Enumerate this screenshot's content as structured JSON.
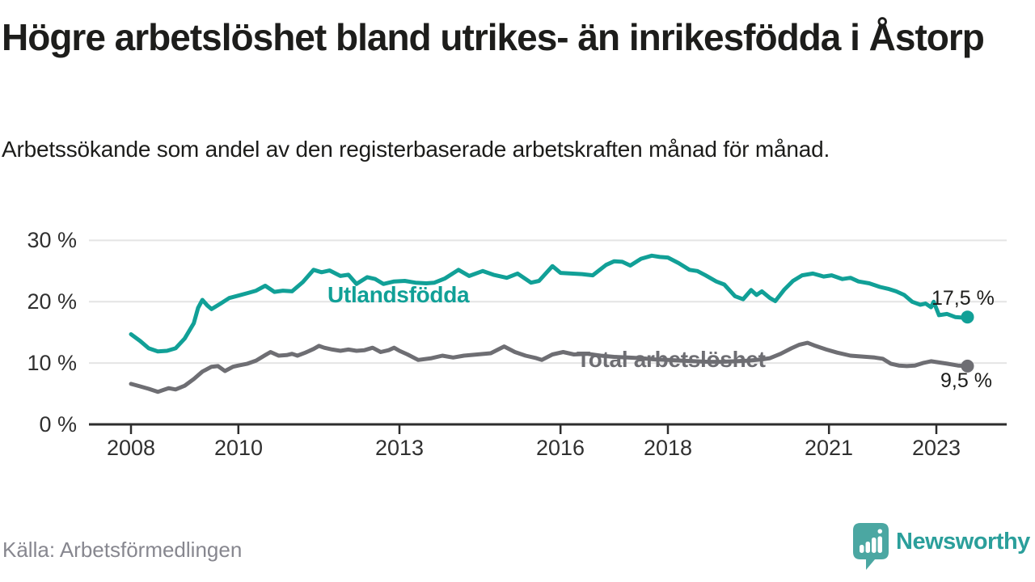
{
  "footer": {
    "source": "Källa: Arbetsförmedlingen",
    "brand_name": "Newsworthy",
    "brand_text_color": "#2b9f9b",
    "brand_icon": "speech-bubble-bar-chart",
    "brand_icon_color": "#4ba7a2"
  },
  "chart_data": {
    "type": "line",
    "title": "Högre arbetslöshet bland utrikes- än inrikesfödda i Åstorp",
    "subtitle": "Arbetssökande som andel av den registerbaserade arbetskraften månad för månad.",
    "x_unit": "year (monthly observations)",
    "y_unit": "percent of registered labour force",
    "xlim": [
      2007.217,
      2024.31
    ],
    "ylim": [
      0,
      31.5
    ],
    "grid": "horizontal",
    "legend_position": "inline-labels",
    "colors": {
      "gridline": "#e4e4e4",
      "axis": "#2d2d2d",
      "tick_text": "#303030",
      "value_text": "#1d1d1b"
    },
    "x_ticks": [
      {
        "value": 2008,
        "label": "2008"
      },
      {
        "value": 2010,
        "label": "2010"
      },
      {
        "value": 2013,
        "label": "2013"
      },
      {
        "value": 2016,
        "label": "2016"
      },
      {
        "value": 2018,
        "label": "2018"
      },
      {
        "value": 2021,
        "label": "2021"
      },
      {
        "value": 2023,
        "label": "2023"
      }
    ],
    "y_ticks": [
      {
        "value": 0,
        "label": "0 %"
      },
      {
        "value": 10,
        "label": "10 %"
      },
      {
        "value": 20,
        "label": "20 %"
      },
      {
        "value": 30,
        "label": "30 %"
      }
    ],
    "series": [
      {
        "name": "Utlandsfödda",
        "color": "#11a097",
        "end_value": 17.5,
        "end_label": "17,5 %",
        "points": [
          [
            2008.0,
            14.7
          ],
          [
            2008.17,
            13.6
          ],
          [
            2008.33,
            12.4
          ],
          [
            2008.5,
            11.9
          ],
          [
            2008.67,
            12.0
          ],
          [
            2008.83,
            12.4
          ],
          [
            2009.0,
            14.0
          ],
          [
            2009.17,
            16.5
          ],
          [
            2009.25,
            19.0
          ],
          [
            2009.33,
            20.3
          ],
          [
            2009.42,
            19.4
          ],
          [
            2009.5,
            18.8
          ],
          [
            2009.67,
            19.7
          ],
          [
            2009.83,
            20.6
          ],
          [
            2010.0,
            21.0
          ],
          [
            2010.17,
            21.4
          ],
          [
            2010.33,
            21.8
          ],
          [
            2010.5,
            22.6
          ],
          [
            2010.67,
            21.6
          ],
          [
            2010.83,
            21.8
          ],
          [
            2011.0,
            21.7
          ],
          [
            2011.2,
            23.2
          ],
          [
            2011.4,
            25.2
          ],
          [
            2011.55,
            24.8
          ],
          [
            2011.7,
            25.1
          ],
          [
            2011.9,
            24.2
          ],
          [
            2012.05,
            24.4
          ],
          [
            2012.2,
            22.9
          ],
          [
            2012.4,
            24.0
          ],
          [
            2012.55,
            23.7
          ],
          [
            2012.7,
            22.9
          ],
          [
            2012.9,
            23.3
          ],
          [
            2013.1,
            23.4
          ],
          [
            2013.3,
            23.1
          ],
          [
            2013.5,
            23.0
          ],
          [
            2013.65,
            23.1
          ],
          [
            2013.85,
            23.8
          ],
          [
            2014.1,
            25.2
          ],
          [
            2014.3,
            24.2
          ],
          [
            2014.55,
            25.0
          ],
          [
            2014.75,
            24.4
          ],
          [
            2015.0,
            23.9
          ],
          [
            2015.2,
            24.6
          ],
          [
            2015.45,
            23.1
          ],
          [
            2015.6,
            23.4
          ],
          [
            2015.85,
            25.8
          ],
          [
            2016.0,
            24.7
          ],
          [
            2016.2,
            24.6
          ],
          [
            2016.4,
            24.5
          ],
          [
            2016.6,
            24.3
          ],
          [
            2016.85,
            26.0
          ],
          [
            2017.0,
            26.6
          ],
          [
            2017.15,
            26.5
          ],
          [
            2017.3,
            25.9
          ],
          [
            2017.5,
            27.0
          ],
          [
            2017.7,
            27.5
          ],
          [
            2017.85,
            27.3
          ],
          [
            2018.0,
            27.2
          ],
          [
            2018.2,
            26.3
          ],
          [
            2018.4,
            25.2
          ],
          [
            2018.55,
            25.0
          ],
          [
            2018.7,
            24.3
          ],
          [
            2018.9,
            23.3
          ],
          [
            2019.05,
            22.8
          ],
          [
            2019.25,
            20.9
          ],
          [
            2019.4,
            20.4
          ],
          [
            2019.55,
            21.9
          ],
          [
            2019.65,
            21.1
          ],
          [
            2019.75,
            21.7
          ],
          [
            2019.9,
            20.6
          ],
          [
            2020.0,
            20.1
          ],
          [
            2020.17,
            22.0
          ],
          [
            2020.33,
            23.4
          ],
          [
            2020.5,
            24.3
          ],
          [
            2020.7,
            24.6
          ],
          [
            2020.9,
            24.1
          ],
          [
            2021.05,
            24.3
          ],
          [
            2021.25,
            23.7
          ],
          [
            2021.4,
            23.9
          ],
          [
            2021.55,
            23.3
          ],
          [
            2021.75,
            23.0
          ],
          [
            2021.95,
            22.4
          ],
          [
            2022.1,
            22.1
          ],
          [
            2022.25,
            21.7
          ],
          [
            2022.4,
            21.1
          ],
          [
            2022.55,
            20.0
          ],
          [
            2022.7,
            19.5
          ],
          [
            2022.8,
            19.7
          ],
          [
            2022.9,
            19.1
          ],
          [
            2022.95,
            20.0
          ],
          [
            2023.05,
            17.8
          ],
          [
            2023.2,
            18.0
          ],
          [
            2023.35,
            17.5
          ],
          [
            2023.5,
            17.4
          ],
          [
            2023.58,
            17.5
          ]
        ]
      },
      {
        "name": "Total arbetslöshet",
        "color": "#6e6e73",
        "end_value": 9.5,
        "end_label": "9,5 %",
        "points": [
          [
            2008.0,
            6.6
          ],
          [
            2008.17,
            6.2
          ],
          [
            2008.33,
            5.8
          ],
          [
            2008.5,
            5.3
          ],
          [
            2008.6,
            5.6
          ],
          [
            2008.7,
            5.9
          ],
          [
            2008.83,
            5.7
          ],
          [
            2009.0,
            6.3
          ],
          [
            2009.17,
            7.4
          ],
          [
            2009.33,
            8.6
          ],
          [
            2009.5,
            9.4
          ],
          [
            2009.62,
            9.5
          ],
          [
            2009.75,
            8.7
          ],
          [
            2009.9,
            9.4
          ],
          [
            2010.0,
            9.6
          ],
          [
            2010.17,
            9.9
          ],
          [
            2010.33,
            10.4
          ],
          [
            2010.5,
            11.3
          ],
          [
            2010.6,
            11.8
          ],
          [
            2010.75,
            11.2
          ],
          [
            2010.9,
            11.3
          ],
          [
            2011.0,
            11.5
          ],
          [
            2011.1,
            11.2
          ],
          [
            2011.25,
            11.7
          ],
          [
            2011.4,
            12.3
          ],
          [
            2011.5,
            12.8
          ],
          [
            2011.6,
            12.5
          ],
          [
            2011.75,
            12.2
          ],
          [
            2011.9,
            12.0
          ],
          [
            2012.05,
            12.2
          ],
          [
            2012.2,
            12.0
          ],
          [
            2012.35,
            12.1
          ],
          [
            2012.5,
            12.5
          ],
          [
            2012.65,
            11.8
          ],
          [
            2012.8,
            12.1
          ],
          [
            2012.9,
            12.5
          ],
          [
            2013.0,
            12.0
          ],
          [
            2013.15,
            11.4
          ],
          [
            2013.35,
            10.5
          ],
          [
            2013.6,
            10.8
          ],
          [
            2013.8,
            11.2
          ],
          [
            2014.0,
            10.9
          ],
          [
            2014.2,
            11.2
          ],
          [
            2014.45,
            11.4
          ],
          [
            2014.7,
            11.6
          ],
          [
            2014.95,
            12.7
          ],
          [
            2015.15,
            11.8
          ],
          [
            2015.35,
            11.2
          ],
          [
            2015.55,
            10.8
          ],
          [
            2015.65,
            10.5
          ],
          [
            2015.85,
            11.4
          ],
          [
            2016.05,
            11.8
          ],
          [
            2016.25,
            11.4
          ],
          [
            2016.5,
            11.5
          ],
          [
            2016.75,
            11.2
          ],
          [
            2017.0,
            11.0
          ],
          [
            2017.25,
            10.9
          ],
          [
            2017.5,
            10.8
          ],
          [
            2017.75,
            10.6
          ],
          [
            2018.0,
            10.5
          ],
          [
            2018.25,
            10.4
          ],
          [
            2018.5,
            10.3
          ],
          [
            2018.75,
            10.2
          ],
          [
            2019.0,
            10.2
          ],
          [
            2019.25,
            10.3
          ],
          [
            2019.5,
            10.4
          ],
          [
            2019.75,
            10.6
          ],
          [
            2019.9,
            10.8
          ],
          [
            2020.1,
            11.5
          ],
          [
            2020.3,
            12.4
          ],
          [
            2020.45,
            13.0
          ],
          [
            2020.6,
            13.3
          ],
          [
            2020.75,
            12.8
          ],
          [
            2020.95,
            12.2
          ],
          [
            2021.15,
            11.7
          ],
          [
            2021.4,
            11.2
          ],
          [
            2021.55,
            11.1
          ],
          [
            2021.7,
            11.0
          ],
          [
            2021.85,
            10.9
          ],
          [
            2022.0,
            10.7
          ],
          [
            2022.15,
            9.9
          ],
          [
            2022.3,
            9.6
          ],
          [
            2022.45,
            9.5
          ],
          [
            2022.6,
            9.6
          ],
          [
            2022.75,
            10.0
          ],
          [
            2022.9,
            10.3
          ],
          [
            2023.05,
            10.1
          ],
          [
            2023.2,
            9.9
          ],
          [
            2023.4,
            9.6
          ],
          [
            2023.58,
            9.5
          ]
        ]
      }
    ]
  }
}
